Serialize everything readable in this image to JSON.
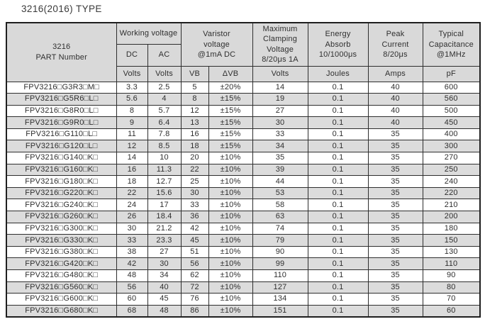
{
  "page_title": "3216(2016) TYPE",
  "table": {
    "header": {
      "part_number": "3216\nPART Number",
      "working_voltage": "Working voltage",
      "dc": "DC",
      "ac": "AC",
      "varistor_voltage": "Varistor\nvoltage\n@1mA DC",
      "max_clamping_voltage": "Maximum\nClamping\nVoltage\n8/20μs 1A",
      "energy_absorb": "Energy\nAbsorb\n10/1000μs",
      "peak_current": "Peak\nCurrent\n8/20μs",
      "typical_capacitance": "Typical\nCapacitance\n@1MHz",
      "units": {
        "dc": "Volts",
        "ac": "Volts",
        "vb": "VB",
        "delta_vb": "ΔVB",
        "clamping": "Volts",
        "energy": "Joules",
        "peak": "Amps",
        "capacitance": "pF"
      }
    },
    "columns": [
      "part_number",
      "dc_working_voltage",
      "ac_working_voltage",
      "varistor_vb",
      "varistor_delta_vb",
      "max_clamping_voltage",
      "energy_absorb",
      "peak_current",
      "typical_capacitance"
    ],
    "rows": [
      [
        "FPV3216□G3R3□M□",
        "3.3",
        "2.5",
        "5",
        "±20%",
        "14",
        "0.1",
        "40",
        "600"
      ],
      [
        "FPV3216□G5R6□L□",
        "5.6",
        "4",
        "8",
        "±15%",
        "19",
        "0.1",
        "40",
        "560"
      ],
      [
        "FPV3216□G8R0□L□",
        "8",
        "5.7",
        "12",
        "±15%",
        "27",
        "0.1",
        "40",
        "500"
      ],
      [
        "FPV3216□G9R0□L□",
        "9",
        "6.4",
        "13",
        "±15%",
        "30",
        "0.1",
        "40",
        "450"
      ],
      [
        "FPV3216□G110□L□",
        "11",
        "7.8",
        "16",
        "±15%",
        "33",
        "0.1",
        "35",
        "400"
      ],
      [
        "FPV3216□G120□L□",
        "12",
        "8.5",
        "18",
        "±15%",
        "34",
        "0.1",
        "35",
        "300"
      ],
      [
        "FPV3216□G140□K□",
        "14",
        "10",
        "20",
        "±10%",
        "35",
        "0.1",
        "35",
        "270"
      ],
      [
        "FPV3216□G160□K□",
        "16",
        "11.3",
        "22",
        "±10%",
        "39",
        "0.1",
        "35",
        "250"
      ],
      [
        "FPV3216□G180□K□",
        "18",
        "12.7",
        "25",
        "±10%",
        "44",
        "0.1",
        "35",
        "240"
      ],
      [
        "FPV3216□G220□K□",
        "22",
        "15.6",
        "30",
        "±10%",
        "53",
        "0.1",
        "35",
        "220"
      ],
      [
        "FPV3216□G240□K□",
        "24",
        "17",
        "33",
        "±10%",
        "58",
        "0.1",
        "35",
        "210"
      ],
      [
        "FPV3216□G260□K□",
        "26",
        "18.4",
        "36",
        "±10%",
        "63",
        "0.1",
        "35",
        "200"
      ],
      [
        "FPV3216□G300□K□",
        "30",
        "21.2",
        "42",
        "±10%",
        "74",
        "0.1",
        "35",
        "180"
      ],
      [
        "FPV3216□G330□K□",
        "33",
        "23.3",
        "45",
        "±10%",
        "79",
        "0.1",
        "35",
        "150"
      ],
      [
        "FPV3216□G380□K□",
        "38",
        "27",
        "51",
        "±10%",
        "90",
        "0.1",
        "35",
        "130"
      ],
      [
        "FPV3216□G420□K□",
        "42",
        "30",
        "56",
        "±10%",
        "99",
        "0.1",
        "35",
        "110"
      ],
      [
        "FPV3216□G480□K□",
        "48",
        "34",
        "62",
        "±10%",
        "110",
        "0.1",
        "35",
        "90"
      ],
      [
        "FPV3216□G560□K□",
        "56",
        "40",
        "72",
        "±10%",
        "127",
        "0.1",
        "35",
        "80"
      ],
      [
        "FPV3216□G600□K□",
        "60",
        "45",
        "76",
        "±10%",
        "134",
        "0.1",
        "35",
        "70"
      ],
      [
        "FPV3216□G680□K□",
        "68",
        "48",
        "86",
        "±10%",
        "151",
        "0.1",
        "35",
        "60"
      ]
    ],
    "colors": {
      "header_bg": "#d9d9d9",
      "row_bg": "#ffffff",
      "row_alt_bg": "#dcdcdc",
      "border": "#2e2e2e",
      "text": "#2f2f2f"
    }
  }
}
